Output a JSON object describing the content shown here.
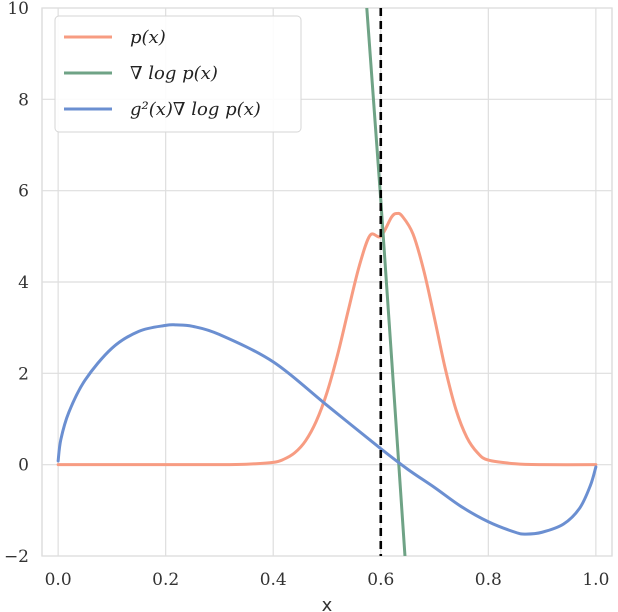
{
  "chart_data": {
    "type": "line",
    "title": "",
    "xlabel": "x",
    "ylabel": "",
    "xlim": [
      -0.03,
      1.03
    ],
    "ylim": [
      -2,
      10
    ],
    "xticks": [
      0.0,
      0.2,
      0.4,
      0.6,
      0.8,
      1.0
    ],
    "xtick_labels": [
      "0.0",
      "0.2",
      "0.4",
      "0.6",
      "0.8",
      "1.0"
    ],
    "yticks": [
      -2,
      0,
      2,
      4,
      6,
      8,
      10
    ],
    "ytick_labels": [
      "−2",
      "0",
      "2",
      "4",
      "6",
      "8",
      "10"
    ],
    "grid": true,
    "legend_position": "top-left",
    "vline": {
      "x": 0.6,
      "style": "dashed",
      "color": "#000000"
    },
    "series": [
      {
        "name": "p(x)",
        "color": "#F79C82",
        "x": [
          0.0,
          0.1,
          0.2,
          0.3,
          0.35,
          0.4,
          0.42,
          0.44,
          0.46,
          0.48,
          0.5,
          0.52,
          0.54,
          0.56,
          0.58,
          0.6,
          0.62,
          0.63,
          0.64,
          0.66,
          0.68,
          0.7,
          0.72,
          0.74,
          0.76,
          0.78,
          0.8,
          0.85,
          0.9,
          1.0
        ],
        "values": [
          0.0,
          0.0,
          0.0,
          0.0,
          0.01,
          0.05,
          0.12,
          0.26,
          0.52,
          0.95,
          1.58,
          2.42,
          3.4,
          4.35,
          5.02,
          5.0,
          5.42,
          5.5,
          5.44,
          5.05,
          4.25,
          3.2,
          2.1,
          1.2,
          0.6,
          0.26,
          0.1,
          0.02,
          0.0,
          0.0
        ]
      },
      {
        "name": "∇ log p(x)",
        "color": "#6FA386",
        "x": [
          0.574,
          0.6,
          0.645
        ],
        "values": [
          10.0,
          5.8,
          -2.0
        ]
      },
      {
        "name": "g²(x)∇ log p(x)",
        "color": "#6B8FD1",
        "x": [
          0.0,
          0.005,
          0.02,
          0.05,
          0.1,
          0.15,
          0.2,
          0.22,
          0.25,
          0.3,
          0.4,
          0.5,
          0.6,
          0.65,
          0.7,
          0.75,
          0.8,
          0.85,
          0.87,
          0.9,
          0.94,
          0.97,
          0.99,
          1.0
        ],
        "values": [
          0.08,
          0.55,
          1.15,
          1.85,
          2.55,
          2.92,
          3.05,
          3.06,
          3.03,
          2.85,
          2.25,
          1.3,
          0.35,
          -0.1,
          -0.5,
          -0.92,
          -1.25,
          -1.48,
          -1.52,
          -1.48,
          -1.3,
          -0.95,
          -0.45,
          -0.05
        ]
      }
    ]
  }
}
